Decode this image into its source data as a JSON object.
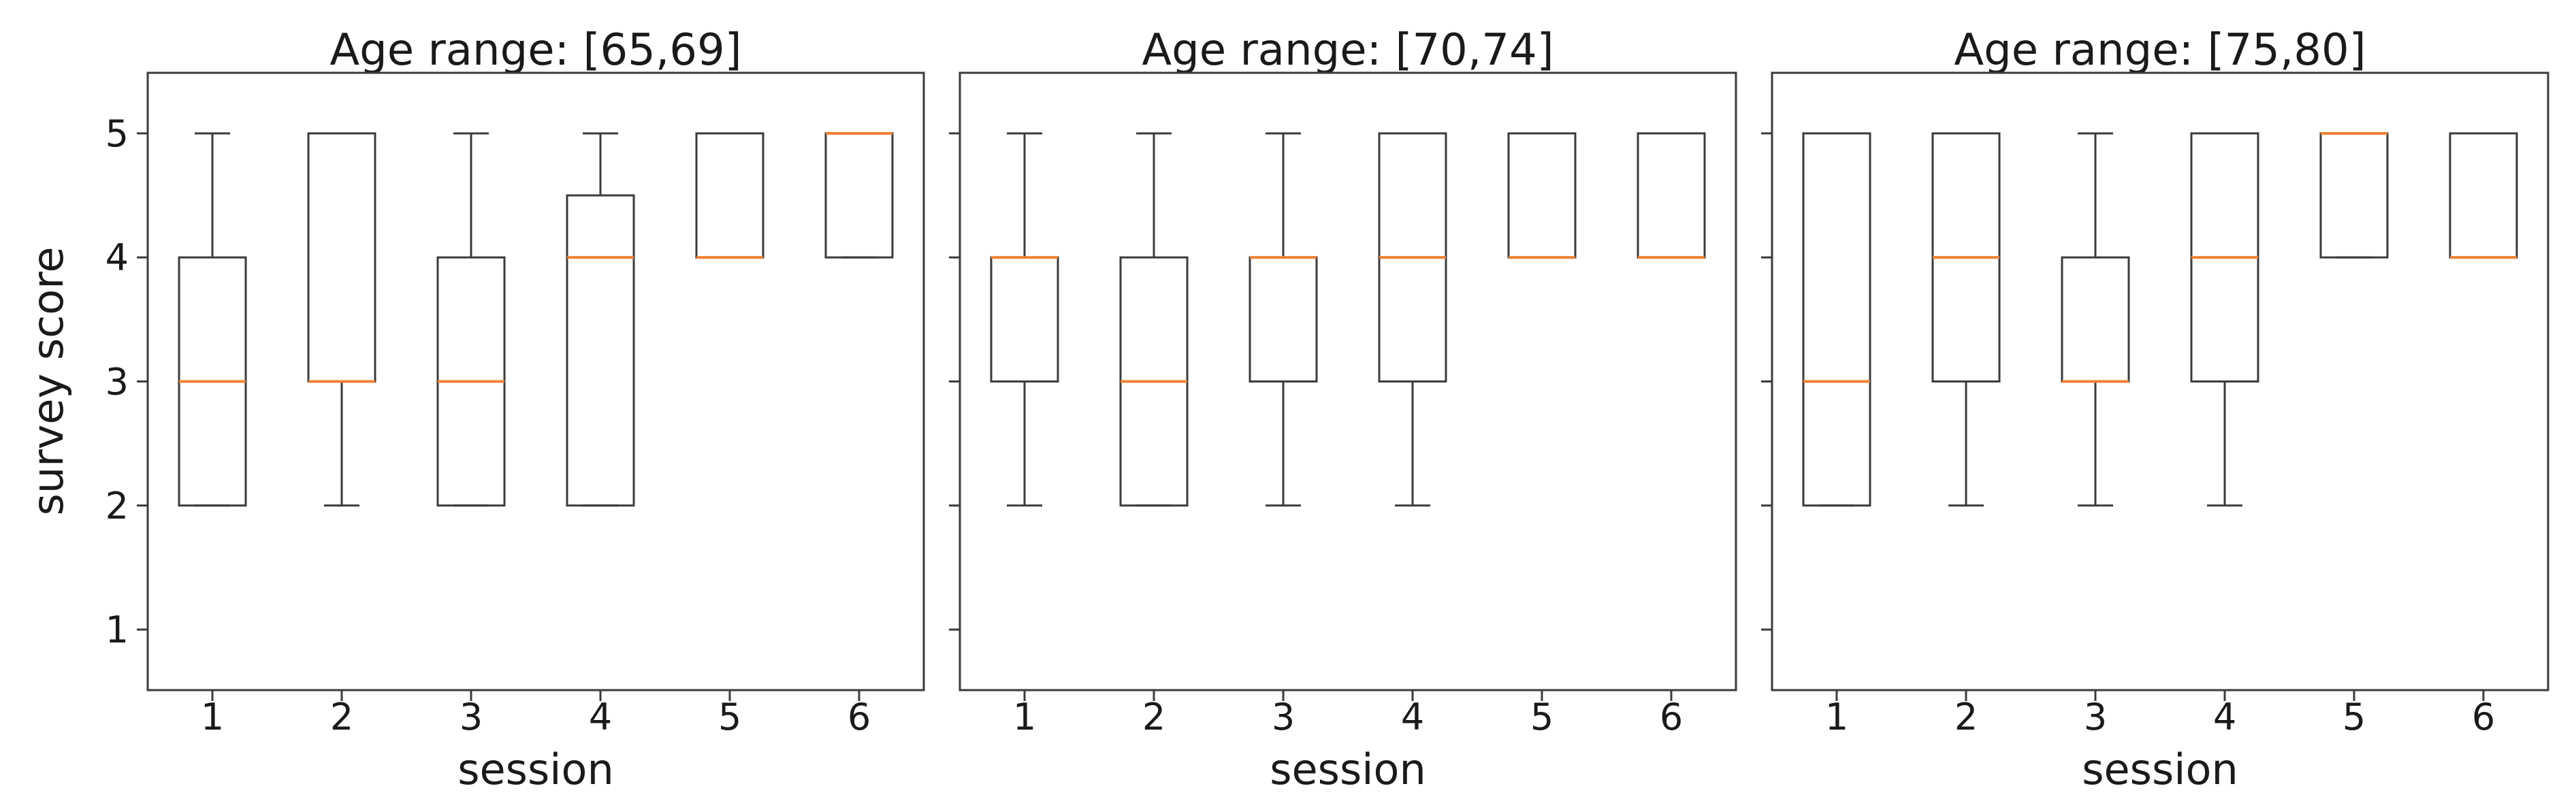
{
  "figure": {
    "ylabel": "survey score",
    "xlabel": "session",
    "y_tick_values": [
      1,
      2,
      3,
      4,
      5
    ],
    "y_tick_labels": [
      "1",
      "2",
      "3",
      "4",
      "5"
    ],
    "x_tick_labels": [
      "1",
      "2",
      "3",
      "4",
      "5",
      "6"
    ],
    "colors": {
      "line": "#3b3b3b",
      "median": "#ef8133",
      "text": "#1a1a1a",
      "background": "#ffffff"
    }
  },
  "chart_data": [
    {
      "type": "box",
      "title": "Age range: [65,69]",
      "xlabel": "session",
      "ylabel": "survey score",
      "categories": [
        "1",
        "2",
        "3",
        "4",
        "5",
        "6"
      ],
      "ylim": [
        0.5,
        5.5
      ],
      "y_ticks": [
        1,
        2,
        3,
        4,
        5
      ],
      "boxes": [
        {
          "session": 1,
          "whislo": 2,
          "q1": 2,
          "med": 3,
          "q3": 4,
          "whishi": 5
        },
        {
          "session": 2,
          "whislo": 2,
          "q1": 3,
          "med": 3,
          "q3": 5,
          "whishi": 5
        },
        {
          "session": 3,
          "whislo": 2,
          "q1": 2,
          "med": 3,
          "q3": 4,
          "whishi": 5
        },
        {
          "session": 4,
          "whislo": 2,
          "q1": 2,
          "med": 4,
          "q3": 4.5,
          "whishi": 5
        },
        {
          "session": 5,
          "whislo": 4,
          "q1": 4,
          "med": 4,
          "q3": 5,
          "whishi": 5
        },
        {
          "session": 6,
          "whislo": 4,
          "q1": 4,
          "med": 5,
          "q3": 5,
          "whishi": 5
        }
      ]
    },
    {
      "type": "box",
      "title": "Age range: [70,74]",
      "xlabel": "session",
      "ylabel": "survey score",
      "categories": [
        "1",
        "2",
        "3",
        "4",
        "5",
        "6"
      ],
      "ylim": [
        0.5,
        5.5
      ],
      "y_ticks": [
        1,
        2,
        3,
        4,
        5
      ],
      "boxes": [
        {
          "session": 1,
          "whislo": 2,
          "q1": 3,
          "med": 4,
          "q3": 4,
          "whishi": 5
        },
        {
          "session": 2,
          "whislo": 2,
          "q1": 2,
          "med": 3,
          "q3": 4,
          "whishi": 5
        },
        {
          "session": 3,
          "whislo": 2,
          "q1": 3,
          "med": 4,
          "q3": 4,
          "whishi": 5
        },
        {
          "session": 4,
          "whislo": 2,
          "q1": 3,
          "med": 4,
          "q3": 5,
          "whishi": 5
        },
        {
          "session": 5,
          "whislo": 4,
          "q1": 4,
          "med": 4,
          "q3": 5,
          "whishi": 5
        },
        {
          "session": 6,
          "whislo": 4,
          "q1": 4,
          "med": 4,
          "q3": 5,
          "whishi": 5
        }
      ]
    },
    {
      "type": "box",
      "title": "Age range: [75,80]",
      "xlabel": "session",
      "ylabel": "survey score",
      "categories": [
        "1",
        "2",
        "3",
        "4",
        "5",
        "6"
      ],
      "ylim": [
        0.5,
        5.5
      ],
      "y_ticks": [
        1,
        2,
        3,
        4,
        5
      ],
      "boxes": [
        {
          "session": 1,
          "whislo": 2,
          "q1": 2,
          "med": 3,
          "q3": 5,
          "whishi": 5
        },
        {
          "session": 2,
          "whislo": 2,
          "q1": 3,
          "med": 4,
          "q3": 5,
          "whishi": 5
        },
        {
          "session": 3,
          "whislo": 2,
          "q1": 3,
          "med": 3,
          "q3": 4,
          "whishi": 5
        },
        {
          "session": 4,
          "whislo": 2,
          "q1": 3,
          "med": 4,
          "q3": 5,
          "whishi": 5
        },
        {
          "session": 5,
          "whislo": 4,
          "q1": 4,
          "med": 5,
          "q3": 5,
          "whishi": 5
        },
        {
          "session": 6,
          "whislo": 4,
          "q1": 4,
          "med": 4,
          "q3": 5,
          "whishi": 5
        }
      ]
    }
  ]
}
